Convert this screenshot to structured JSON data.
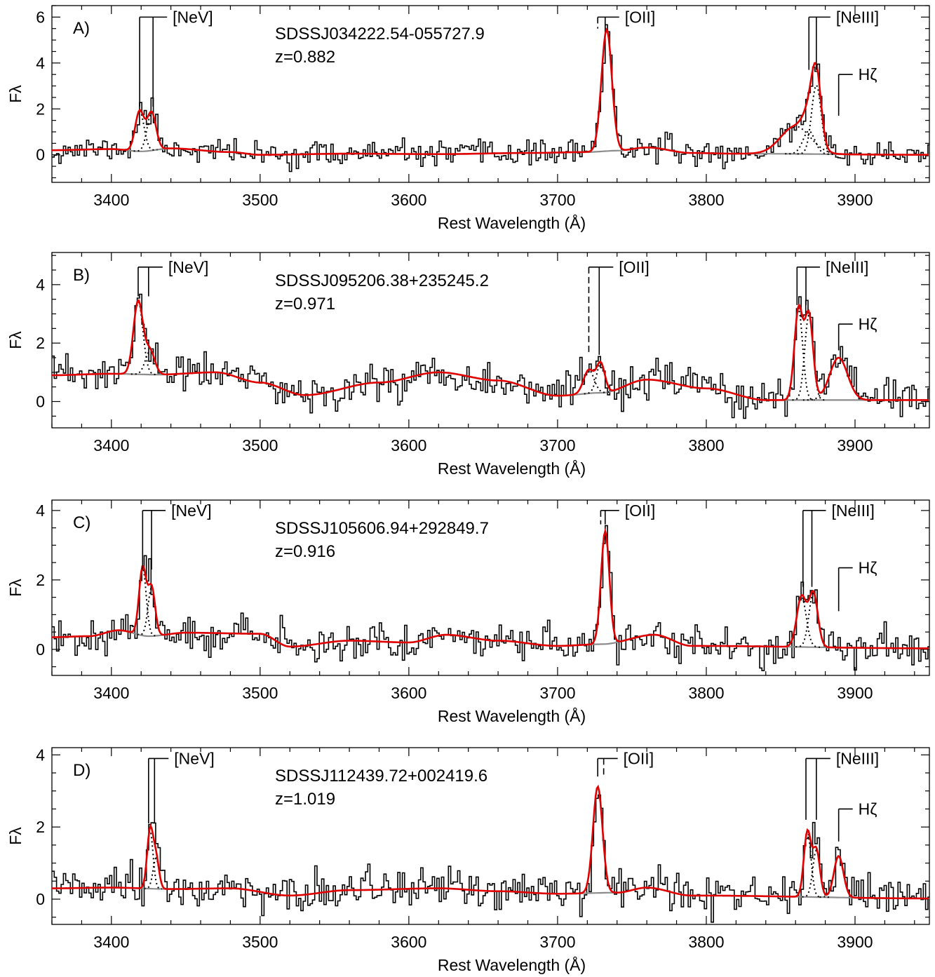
{
  "colors": {
    "data": "#000000",
    "model": "#e00000",
    "continuum": "#8c8c8c",
    "component": "#000000"
  },
  "chart_data": [
    {
      "type": "line",
      "panel": "A)",
      "object": "SDSSJ034222.54-055727.9",
      "redshift_text": "z=0.882",
      "xlabel": "Rest Wavelength (Å)",
      "ylabel": "Fλ",
      "xlim": [
        3360,
        3950
      ],
      "ylim": [
        -1.2,
        6.5
      ],
      "x_ticks": [
        3400,
        3500,
        3600,
        3700,
        3800,
        3900
      ],
      "y_ticks": [
        0,
        2,
        4,
        6
      ],
      "noise": 0.26,
      "seed": 11,
      "continuum": [
        [
          3360,
          0.2
        ],
        [
          3400,
          0.25
        ],
        [
          3420,
          0.15
        ],
        [
          3440,
          0.28
        ],
        [
          3480,
          0.12
        ],
        [
          3500,
          0.0
        ],
        [
          3560,
          0.05
        ],
        [
          3620,
          0.03
        ],
        [
          3680,
          0.08
        ],
        [
          3720,
          0.12
        ],
        [
          3740,
          0.18
        ],
        [
          3760,
          0.32
        ],
        [
          3790,
          0.08
        ],
        [
          3820,
          0.05
        ],
        [
          3950,
          0.0
        ]
      ],
      "lines": [
        {
          "name": "[NeV]",
          "center": 3419,
          "amp": 1.75,
          "sigma": 3.0
        },
        {
          "name": "[NeV]",
          "center": 3427,
          "amp": 1.65,
          "sigma": 3.0
        },
        {
          "name": "[OII]",
          "center": 3733,
          "amp": 5.3,
          "sigma": 3.5
        },
        {
          "name": "[NeIII]",
          "center": 3869,
          "amp": 1.0,
          "sigma": 4.0
        },
        {
          "name": "[NeIII]",
          "center": 3874,
          "amp": 3.0,
          "sigma": 3.2
        },
        {
          "name": "wing",
          "center": 3860,
          "amp": 1.2,
          "sigma": 10.0
        }
      ],
      "markers": [
        {
          "label": "[NeV]",
          "x": [
            3419,
            3428
          ],
          "y_top": 6.0,
          "y_bottom": 2.1,
          "dashed": [
            false,
            false
          ]
        },
        {
          "label": "[OII]",
          "x": [
            3727,
            3732
          ],
          "y_top": 6.0,
          "y_bottom": 5.5,
          "dashed": [
            true,
            false
          ]
        },
        {
          "label": "[NeIII]",
          "x": [
            3869,
            3874
          ],
          "y_top": 6.0,
          "y_bottom": 3.7,
          "dashed": [
            false,
            false
          ]
        },
        {
          "label": "Hζ",
          "x": [
            3889
          ],
          "y_top": 3.5,
          "y_bottom": 1.7,
          "dashed": [
            false
          ]
        }
      ]
    },
    {
      "type": "line",
      "panel": "B)",
      "object": "SDSSJ095206.38+235245.2",
      "redshift_text": "z=0.971",
      "xlabel": "Rest Wavelength (Å)",
      "ylabel": "Fλ",
      "xlim": [
        3360,
        3950
      ],
      "ylim": [
        -0.9,
        5.1
      ],
      "x_ticks": [
        3400,
        3500,
        3600,
        3700,
        3800,
        3900
      ],
      "y_ticks": [
        0,
        2,
        4
      ],
      "noise": 0.33,
      "seed": 23,
      "continuum": [
        [
          3360,
          0.9
        ],
        [
          3400,
          0.95
        ],
        [
          3430,
          0.92
        ],
        [
          3470,
          1.0
        ],
        [
          3500,
          0.65
        ],
        [
          3530,
          0.22
        ],
        [
          3580,
          0.65
        ],
        [
          3620,
          1.0
        ],
        [
          3660,
          0.72
        ],
        [
          3700,
          0.2
        ],
        [
          3730,
          0.3
        ],
        [
          3760,
          0.75
        ],
        [
          3800,
          0.45
        ],
        [
          3840,
          0.05
        ],
        [
          3950,
          0.05
        ]
      ],
      "lines": [
        {
          "name": "[NeV]",
          "center": 3418,
          "amp": 2.5,
          "sigma": 3.2
        },
        {
          "name": "[NeV]",
          "center": 3426,
          "amp": 0.8,
          "sigma": 3.2
        },
        {
          "name": "[OII]",
          "center": 3721,
          "amp": 0.8,
          "sigma": 3.5
        },
        {
          "name": "[OII]",
          "center": 3729,
          "amp": 1.0,
          "sigma": 2.8
        },
        {
          "name": "[NeIII]",
          "center": 3862,
          "amp": 3.1,
          "sigma": 2.8
        },
        {
          "name": "[NeIII]",
          "center": 3869,
          "amp": 2.9,
          "sigma": 2.8
        },
        {
          "name": "Hζ",
          "center": 3889,
          "amp": 1.45,
          "sigma": 6.0
        }
      ],
      "markers": [
        {
          "label": "[NeV]",
          "x": [
            3418,
            3425
          ],
          "y_top": 4.6,
          "y_bottom": 3.6,
          "dashed": [
            false,
            false
          ]
        },
        {
          "label": "[OII]",
          "x": [
            3721,
            3728
          ],
          "y_top": 4.6,
          "y_bottom": 1.6,
          "dashed": [
            true,
            false
          ]
        },
        {
          "label": "[NeIII]",
          "x": [
            3861,
            3867
          ],
          "y_top": 4.6,
          "y_bottom": 3.3,
          "dashed": [
            false,
            false
          ]
        },
        {
          "label": "Hζ",
          "x": [
            3889
          ],
          "y_top": 2.65,
          "y_bottom": 1.75,
          "dashed": [
            false
          ]
        }
      ]
    },
    {
      "type": "line",
      "panel": "C)",
      "object": "SDSSJ105606.94+292849.7",
      "redshift_text": "z=0.916",
      "xlabel": "Rest Wavelength (Å)",
      "ylabel": "Fλ",
      "xlim": [
        3360,
        3950
      ],
      "ylim": [
        -0.75,
        4.3
      ],
      "x_ticks": [
        3400,
        3500,
        3600,
        3700,
        3800,
        3900
      ],
      "y_ticks": [
        0,
        2,
        4
      ],
      "noise": 0.26,
      "seed": 37,
      "continuum": [
        [
          3360,
          0.35
        ],
        [
          3385,
          0.38
        ],
        [
          3405,
          0.55
        ],
        [
          3425,
          0.38
        ],
        [
          3450,
          0.48
        ],
        [
          3500,
          0.45
        ],
        [
          3520,
          0.08
        ],
        [
          3560,
          0.25
        ],
        [
          3600,
          0.2
        ],
        [
          3625,
          0.42
        ],
        [
          3660,
          0.25
        ],
        [
          3700,
          0.1
        ],
        [
          3730,
          0.15
        ],
        [
          3765,
          0.42
        ],
        [
          3790,
          0.1
        ],
        [
          3950,
          0.03
        ]
      ],
      "lines": [
        {
          "name": "[NeV]",
          "center": 3421,
          "amp": 1.95,
          "sigma": 2.4
        },
        {
          "name": "[NeV]",
          "center": 3427,
          "amp": 1.4,
          "sigma": 2.4
        },
        {
          "name": "[OII]",
          "center": 3732,
          "amp": 3.25,
          "sigma": 2.8
        },
        {
          "name": "[NeIII]",
          "center": 3864,
          "amp": 1.45,
          "sigma": 3.2
        },
        {
          "name": "[NeIII]",
          "center": 3872,
          "amp": 1.55,
          "sigma": 3.0
        }
      ],
      "markers": [
        {
          "label": "[NeV]",
          "x": [
            3421,
            3427
          ],
          "y_top": 4.0,
          "y_bottom": 2.3,
          "dashed": [
            false,
            false
          ]
        },
        {
          "label": "[OII]",
          "x": [
            3729,
            3732
          ],
          "y_top": 4.0,
          "y_bottom": 3.6,
          "dashed": [
            true,
            false
          ]
        },
        {
          "label": "[NeIII]",
          "x": [
            3865,
            3871
          ],
          "y_top": 4.0,
          "y_bottom": 1.8,
          "dashed": [
            false,
            false
          ]
        },
        {
          "label": "Hζ",
          "x": [
            3889
          ],
          "y_top": 2.35,
          "y_bottom": 1.1,
          "dashed": [
            false
          ]
        }
      ]
    },
    {
      "type": "line",
      "panel": "D)",
      "object": "SDSSJ112439.72+002419.6",
      "redshift_text": "z=1.019",
      "xlabel": "Rest Wavelength (Å)",
      "ylabel": "Fλ",
      "xlim": [
        3360,
        3950
      ],
      "ylim": [
        -0.7,
        4.2
      ],
      "x_ticks": [
        3400,
        3500,
        3600,
        3700,
        3800,
        3900
      ],
      "y_ticks": [
        0,
        2,
        4
      ],
      "noise": 0.27,
      "seed": 51,
      "continuum": [
        [
          3360,
          0.3
        ],
        [
          3400,
          0.32
        ],
        [
          3440,
          0.28
        ],
        [
          3480,
          0.3
        ],
        [
          3520,
          0.1
        ],
        [
          3560,
          0.25
        ],
        [
          3620,
          0.3
        ],
        [
          3660,
          0.22
        ],
        [
          3700,
          0.15
        ],
        [
          3740,
          0.18
        ],
        [
          3760,
          0.32
        ],
        [
          3790,
          0.1
        ],
        [
          3950,
          0.02
        ]
      ],
      "lines": [
        {
          "name": "[NeV]",
          "center": 3426,
          "amp": 1.6,
          "sigma": 2.0
        },
        {
          "name": "[NeV]",
          "center": 3430,
          "amp": 0.85,
          "sigma": 2.0
        },
        {
          "name": "[OII]",
          "center": 3727,
          "amp": 2.95,
          "sigma": 3.2
        },
        {
          "name": "[NeIII]",
          "center": 3868,
          "amp": 1.8,
          "sigma": 2.4
        },
        {
          "name": "[NeIII]",
          "center": 3874,
          "amp": 1.3,
          "sigma": 2.4
        },
        {
          "name": "Hζ",
          "center": 3889,
          "amp": 1.15,
          "sigma": 3.2
        }
      ],
      "markers": [
        {
          "label": "[NeV]",
          "x": [
            3425,
            3429
          ],
          "y_top": 3.9,
          "y_bottom": 2.1,
          "dashed": [
            false,
            false
          ]
        },
        {
          "label": "[OII]",
          "x": [
            3727,
            3731
          ],
          "y_top": 3.9,
          "y_bottom": 3.4,
          "dashed": [
            false,
            true
          ]
        },
        {
          "label": "[NeIII]",
          "x": [
            3867,
            3874
          ],
          "y_top": 3.9,
          "y_bottom": 2.2,
          "dashed": [
            false,
            false
          ]
        },
        {
          "label": "Hζ",
          "x": [
            3889
          ],
          "y_top": 2.5,
          "y_bottom": 1.6,
          "dashed": [
            false
          ]
        }
      ]
    }
  ]
}
